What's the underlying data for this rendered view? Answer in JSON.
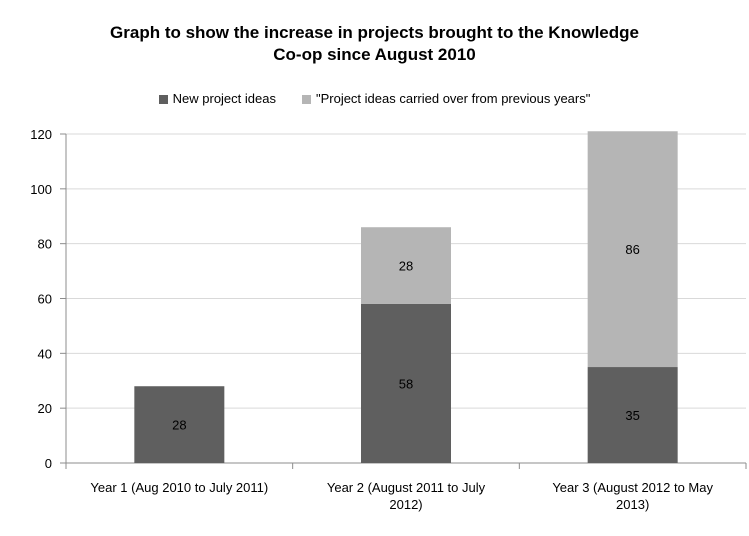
{
  "chart_data": {
    "type": "bar",
    "stacked": true,
    "title_lines": [
      "Graph to show the increase in projects brought to the Knowledge",
      "Co-op since August 2010"
    ],
    "categories": [
      [
        "Year 1 (Aug 2010 to July 2011)"
      ],
      [
        "Year 2 (August 2011 to July",
        "2012)"
      ],
      [
        "Year 3 (August 2012 to May",
        "2013)"
      ]
    ],
    "series": [
      {
        "name": "New project ideas",
        "color": "#5f5f5f",
        "values": [
          28,
          58,
          35
        ]
      },
      {
        "name": "\"Project ideas carried over from previous years\"",
        "color": "#b5b5b5",
        "values": [
          0,
          28,
          86
        ]
      }
    ],
    "ylim": [
      0,
      120
    ],
    "yticks": [
      0,
      20,
      40,
      60,
      80,
      100,
      120
    ],
    "grid": true,
    "legend_position": "top"
  }
}
